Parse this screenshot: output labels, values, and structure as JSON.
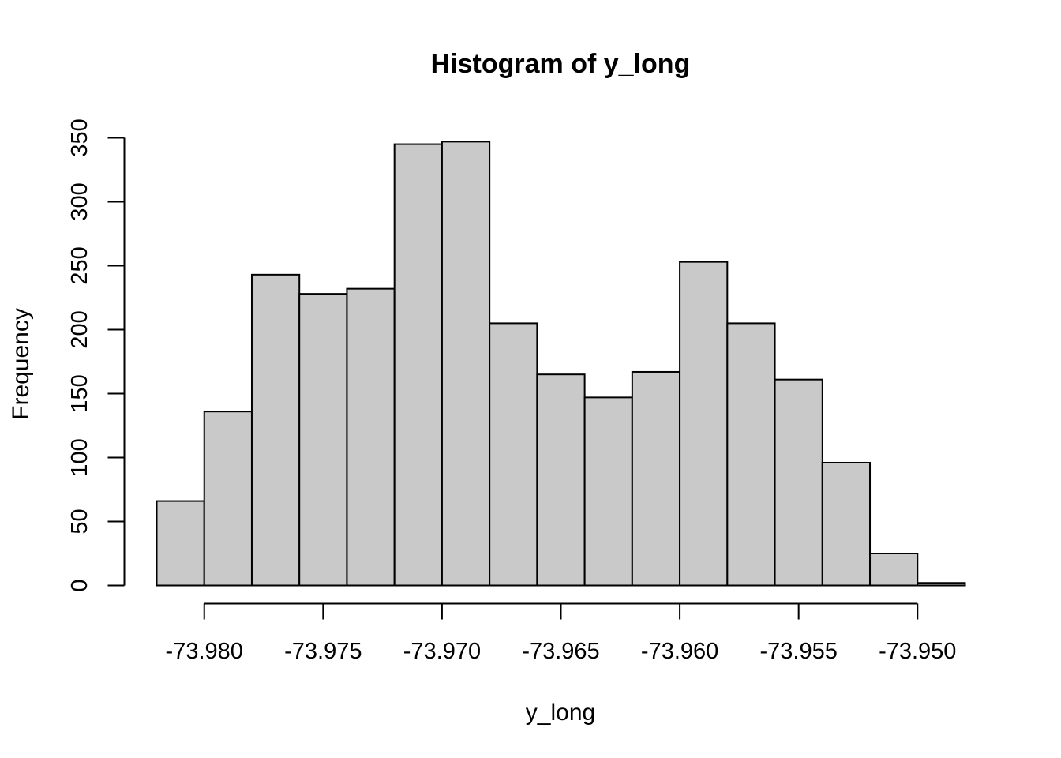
{
  "chart_data": {
    "type": "bar",
    "title": "Histogram of y_long",
    "xlabel": "y_long",
    "ylabel": "Frequency",
    "bin_edges": [
      -73.982,
      -73.98,
      -73.978,
      -73.976,
      -73.974,
      -73.972,
      -73.97,
      -73.968,
      -73.966,
      -73.964,
      -73.962,
      -73.96,
      -73.958,
      -73.956,
      -73.954,
      -73.952,
      -73.95,
      -73.948
    ],
    "values": [
      66,
      136,
      243,
      228,
      232,
      345,
      347,
      205,
      165,
      147,
      167,
      253,
      205,
      161,
      96,
      25,
      2
    ],
    "xticks": [
      -73.98,
      -73.975,
      -73.97,
      -73.965,
      -73.96,
      -73.955,
      -73.95
    ],
    "xtick_labels": [
      "-73.980",
      "-73.975",
      "-73.970",
      "-73.965",
      "-73.960",
      "-73.955",
      "-73.950"
    ],
    "yticks": [
      0,
      50,
      100,
      150,
      200,
      250,
      300,
      350
    ],
    "ytick_labels": [
      "0",
      "50",
      "100",
      "150",
      "200",
      "250",
      "300",
      "350"
    ],
    "xlim": [
      -73.982,
      -73.948
    ],
    "ylim": [
      0,
      350
    ],
    "bar_color": "#c9c9c9",
    "edge_color": "#000000",
    "grid": false,
    "legend": false
  }
}
